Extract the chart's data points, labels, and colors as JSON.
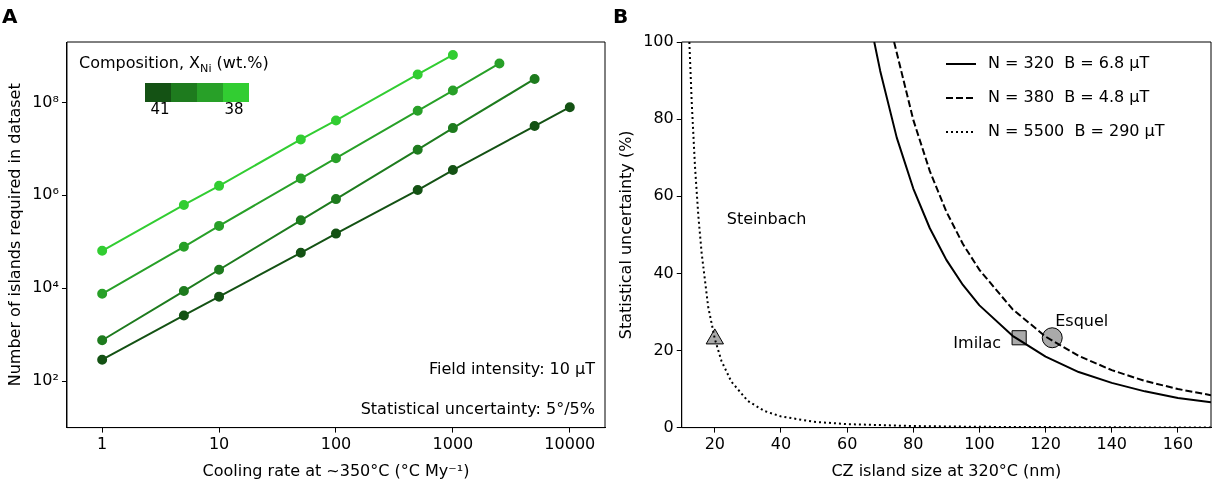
{
  "chart_data": [
    {
      "type": "line",
      "title": "A",
      "xlabel": "Cooling rate at ~350°C (°C My⁻¹)",
      "ylabel": "Number of islands required in dataset",
      "legend_title": "Composition, X$_{Ni}$ (wt.%)",
      "legend": "top left",
      "log": "xy",
      "marker": "circle",
      "grid": false,
      "xlim": [
        0.5,
        20000
      ],
      "xticks": [
        1,
        10,
        100,
        1000,
        10000
      ],
      "ylim": [
        10,
        2000000000
      ],
      "yticks": [
        {
          "value": 100,
          "label": "10²"
        },
        {
          "value": 10000,
          "label": "10⁴"
        },
        {
          "value": 1000000,
          "label": "10⁶"
        },
        {
          "value": 100000000,
          "label": "10⁸"
        }
      ],
      "series": [
        {
          "name": "41",
          "color": "#145214",
          "x": [
            1,
            5,
            10,
            50,
            100,
            500,
            1000,
            5000,
            10000
          ],
          "values": [
            290,
            2600,
            6600,
            58000,
            150000,
            1300000,
            3500000,
            31000000,
            79000000
          ]
        },
        {
          "color": "#1e7b1e",
          "x": [
            1,
            5,
            10,
            50,
            100,
            500,
            1000,
            5000
          ],
          "values": [
            760,
            8700,
            25000,
            290000,
            830000,
            9600000,
            28000000,
            320000000
          ]
        },
        {
          "color": "#28a028",
          "x": [
            1,
            5,
            10,
            50,
            100,
            500,
            1000,
            2500
          ],
          "values": [
            7600,
            78000,
            220000,
            2300000,
            6300000,
            66000000,
            180000000,
            690000000
          ]
        },
        {
          "name": "38",
          "color": "#32cd32",
          "x": [
            1,
            5,
            10,
            50,
            100,
            500,
            1000
          ],
          "values": [
            64000,
            620000,
            1600000,
            16000000,
            41000000,
            400000000,
            1050000000
          ]
        }
      ],
      "annotations": [
        "Field intensity: 10 µT",
        "Statistical uncertainty: 5°/5%"
      ]
    },
    {
      "type": "line",
      "title": "B",
      "xlabel": "CZ island size at 320°C (nm)",
      "ylabel": "Statistical uncertainty (%)",
      "legend": "top right",
      "marker": "none",
      "grid": false,
      "xlim": [
        10,
        170
      ],
      "xticks": [
        20,
        40,
        60,
        80,
        100,
        120,
        140,
        160
      ],
      "ylim": [
        0,
        100
      ],
      "yticks": [
        0,
        20,
        40,
        60,
        80,
        100
      ],
      "series": [
        {
          "name": "N = 320  B = 6.8 µT",
          "color": "#000000",
          "line_style": "solid",
          "x": [
            68.2,
            70,
            75,
            80,
            85,
            90,
            95,
            100,
            110,
            120,
            130,
            140,
            150,
            160,
            170
          ],
          "values": [
            100,
            92.5,
            75.2,
            62,
            51.7,
            43.5,
            37,
            31.7,
            23.8,
            18.4,
            14.4,
            11.6,
            9.4,
            7.7,
            6.6
          ]
        },
        {
          "name": "N = 380  B = 4.8 µT",
          "color": "#000000",
          "line_style": "dashed",
          "x": [
            74.2,
            80,
            85,
            90,
            95,
            100,
            110,
            120,
            130,
            140,
            150,
            160,
            170
          ],
          "values": [
            100,
            79.8,
            66.5,
            56,
            47.6,
            40.9,
            30.7,
            23.6,
            18.6,
            14.9,
            12.1,
            10,
            8.4
          ]
        },
        {
          "name": "N = 5500  B = 290 µT",
          "color": "#000000",
          "line_style": "dotted",
          "x": [
            12.3,
            13,
            14,
            15,
            16,
            18,
            20,
            22,
            25,
            30,
            35,
            40,
            50,
            60,
            80,
            100,
            130,
            170
          ],
          "values": [
            100,
            84.7,
            67.8,
            55.1,
            45.4,
            31.3,
            23,
            17.3,
            11.9,
            6.9,
            4.3,
            2.9,
            1.5,
            0.9,
            0.4,
            0.2,
            0.1,
            0
          ]
        },
        {
          "type": "scatter",
          "color": "#aaaaaa",
          "marker": "triangle",
          "x": [
            20
          ],
          "values": [
            23
          ]
        },
        {
          "type": "scatter",
          "color": "#aaaaaa",
          "marker": "square",
          "x": [
            112
          ],
          "values": [
            23.3
          ]
        },
        {
          "type": "scatter",
          "color": "#aaaaaa",
          "marker": "circle",
          "x": [
            122
          ],
          "values": [
            23.3
          ]
        }
      ],
      "annotations": [
        "Steinbach",
        {
          "text": "Imilac",
          "x": 112,
          "y": 23.3
        },
        {
          "text": "Esquel",
          "x": 122,
          "y": 23.3
        }
      ]
    }
  ]
}
